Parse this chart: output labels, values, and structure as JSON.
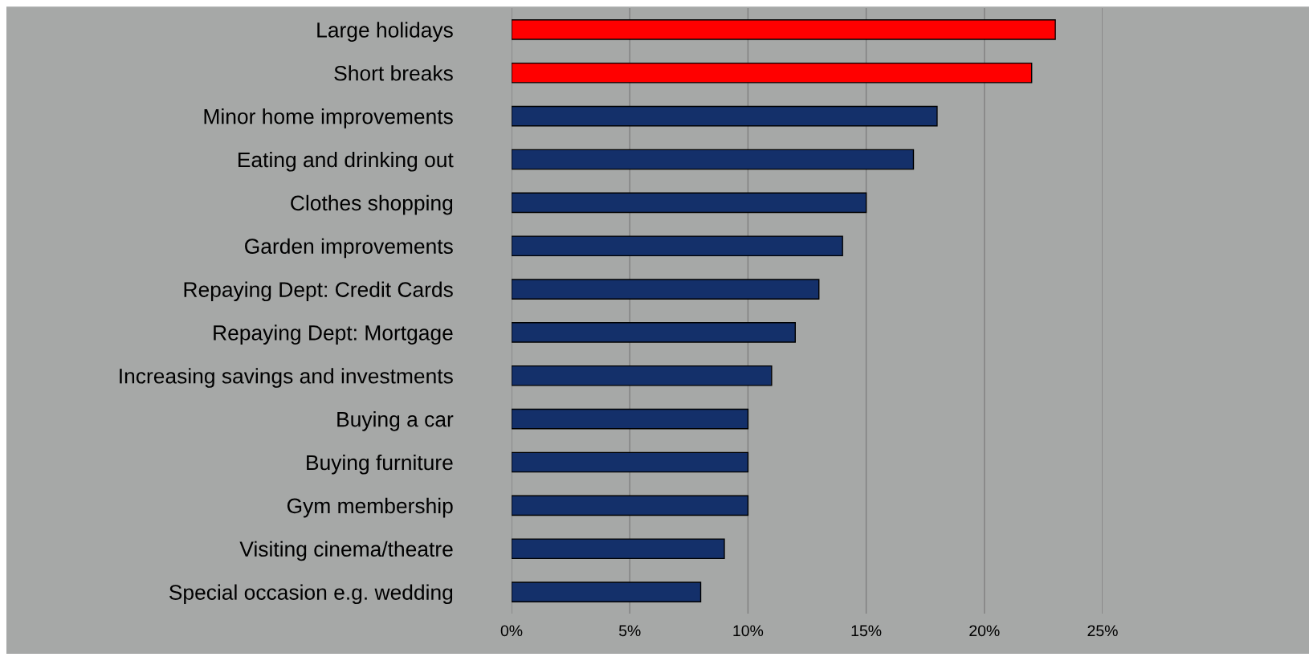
{
  "chart_data": {
    "type": "bar",
    "orientation": "horizontal",
    "categories": [
      "Large holidays",
      "Short breaks",
      "Minor home improvements",
      "Eating and drinking out",
      "Clothes shopping",
      "Garden improvements",
      "Repaying Dept: Credit Cards",
      "Repaying Dept: Mortgage",
      "Increasing savings and investments",
      "Buying a car",
      "Buying furniture",
      "Gym membership",
      "Visiting cinema/theatre",
      "Special occasion e.g. wedding"
    ],
    "values": [
      23,
      22,
      18,
      17,
      15,
      14,
      13,
      12,
      11,
      10,
      10,
      10,
      9,
      8
    ],
    "colors": [
      "#ff0000",
      "#ff0000",
      "#14306a",
      "#14306a",
      "#14306a",
      "#14306a",
      "#14306a",
      "#14306a",
      "#14306a",
      "#14306a",
      "#14306a",
      "#14306a",
      "#14306a",
      "#14306a"
    ],
    "xlim": [
      0,
      25
    ],
    "xticks": [
      {
        "value": 0,
        "label": "0%"
      },
      {
        "value": 5,
        "label": "5%"
      },
      {
        "value": 10,
        "label": "10%"
      },
      {
        "value": 15,
        "label": "15%"
      },
      {
        "value": 20,
        "label": "20%"
      },
      {
        "value": 25,
        "label": "25%"
      }
    ],
    "grid": "x"
  }
}
